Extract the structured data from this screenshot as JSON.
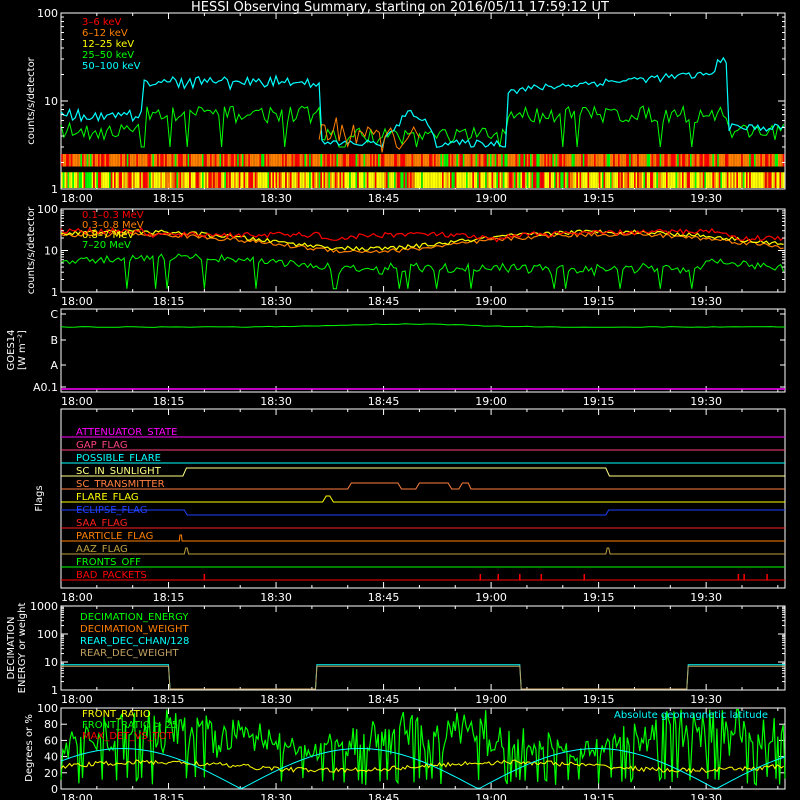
{
  "title": "HESSI Observing Summary, starting on 2016/05/11 17:59:12 UT",
  "time_ticks": [
    "18:00",
    "18:15",
    "18:30",
    "18:45",
    "19:00",
    "19:15",
    "19:30"
  ],
  "colors": {
    "frame": "#ffffff",
    "red": "#ff0000",
    "orange": "#ff8000",
    "yellow": "#ffff00",
    "green": "#00ff00",
    "cyan": "#00ffff",
    "magenta": "#ff00ff",
    "blue": "#0000ff",
    "olive": "#c0a060",
    "salmon": "#ff7f50"
  },
  "chart_data": [
    {
      "type": "line",
      "id": "lowE",
      "ylabel": "counts/s/detector",
      "yscale": "log",
      "ylim": [
        1,
        100
      ],
      "yticks": [
        "1",
        "10",
        "100"
      ],
      "series": [
        {
          "name": "3–6 keV",
          "color": "#ff0000"
        },
        {
          "name": "6–12 keV",
          "color": "#ff8000"
        },
        {
          "name": "12–25 keV",
          "color": "#ffff00"
        },
        {
          "name": "25–50 keV",
          "color": "#00ff00"
        },
        {
          "name": "50–100 keV",
          "color": "#00ffff"
        }
      ]
    },
    {
      "type": "line",
      "id": "highE",
      "ylabel": "counts/s/detector",
      "yscale": "log",
      "ylim": [
        1,
        100
      ],
      "yticks": [
        "1",
        "10",
        "100"
      ],
      "series": [
        {
          "name": "0.1–0.3 MeV",
          "color": "#ff0000"
        },
        {
          "name": "0.3–0.8 MeV",
          "color": "#ff8000"
        },
        {
          "name": "0.8–7 MeV",
          "color": "#ffff00"
        },
        {
          "name": "7–20 MeV",
          "color": "#00ff00"
        }
      ]
    },
    {
      "type": "line",
      "id": "goes",
      "ylabel": "GOES14",
      "ylabel2": "[W m⁻²]",
      "yticks": [
        "A0.1",
        "A",
        "B",
        "C"
      ]
    },
    {
      "type": "line",
      "id": "flags",
      "ylabel": "Flags",
      "series": [
        {
          "name": "ATTENUATOR_STATE",
          "color": "#ff00ff"
        },
        {
          "name": "GAP_FLAG",
          "color": "#ff4080"
        },
        {
          "name": "POSSIBLE_FLARE",
          "color": "#00ffff"
        },
        {
          "name": "SC_IN_SUNLIGHT",
          "color": "#ffff80"
        },
        {
          "name": "SC_TRANSMITTER",
          "color": "#ff8040"
        },
        {
          "name": "FLARE_FLAG",
          "color": "#ffff00"
        },
        {
          "name": "ECLIPSE_FLAG",
          "color": "#2040ff"
        },
        {
          "name": "SAA_FLAG",
          "color": "#ff2020"
        },
        {
          "name": "PARTICLE_FLAG",
          "color": "#ff8000"
        },
        {
          "name": "AAZ_FLAG",
          "color": "#c0a040"
        },
        {
          "name": "FRONTS_OFF",
          "color": "#00ff00"
        },
        {
          "name": "BAD_PACKETS",
          "color": "#ff0000"
        }
      ]
    },
    {
      "type": "line",
      "id": "decim",
      "ylabel": "DECIMATION",
      "ylabel2": "ENERGY or weight",
      "yscale": "log",
      "ylim": [
        1,
        1000
      ],
      "yticks": [
        "1",
        "10",
        "100",
        "1000"
      ],
      "series": [
        {
          "name": "DECIMATION_ENERGY",
          "color": "#00ff00"
        },
        {
          "name": "DECIMATION_WEIGHT",
          "color": "#ff8000"
        },
        {
          "name": "REAR_DEC_CHAN/128",
          "color": "#00ffff"
        },
        {
          "name": "REAR_DEC_WEIGHT",
          "color": "#c0a060"
        }
      ]
    },
    {
      "type": "line",
      "id": "geo",
      "ylabel": "Degrees or %",
      "ylim": [
        0,
        100
      ],
      "yticks": [
        "0",
        "20",
        "40",
        "60",
        "80",
        "100"
      ],
      "annotation": "Absolute geomagnetic latitude",
      "series": [
        {
          "name": "FRONT_RATIO",
          "color": "#ffff00"
        },
        {
          "name": "FRONT_RATIO > 25",
          "color": "#00ff00"
        },
        {
          "name": "MAX_DET_VS_TOT",
          "color": "#ff0000"
        }
      ]
    }
  ]
}
